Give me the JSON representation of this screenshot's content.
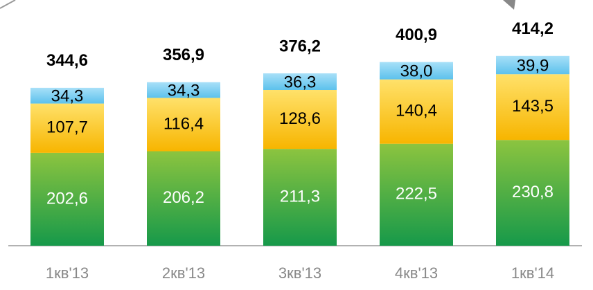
{
  "chart_data": {
    "type": "stacked-bar",
    "categories": [
      "1кв'13",
      "2кв'13",
      "3кв'13",
      "4кв'13",
      "1кв'14"
    ],
    "series": [
      {
        "color": "#5cae3c",
        "values": [
          202.6,
          206.2,
          211.3,
          222.5,
          230.8
        ],
        "value_labels": [
          "202,6",
          "206,2",
          "211,3",
          "222,5",
          "230,8"
        ]
      },
      {
        "color": "#fcc524",
        "values": [
          107.7,
          116.4,
          128.6,
          140.4,
          143.5
        ],
        "value_labels": [
          "107,7",
          "116,4",
          "128,6",
          "140,4",
          "143,5"
        ]
      },
      {
        "color": "#7fcff2",
        "values": [
          34.3,
          34.3,
          36.3,
          38.0,
          39.9
        ],
        "value_labels": [
          "34,3",
          "34,3",
          "36,3",
          "38,0",
          "39,9"
        ]
      }
    ],
    "totals": {
      "values": [
        344.6,
        356.9,
        376.2,
        400.9,
        414.2
      ],
      "value_labels": [
        "344,6",
        "356,9",
        "376,2",
        "400,9",
        "414,2"
      ]
    }
  }
}
